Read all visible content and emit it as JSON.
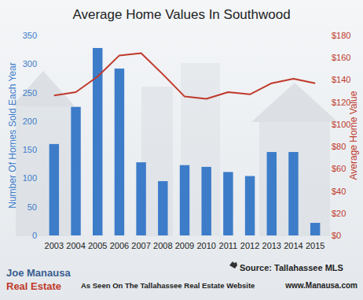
{
  "chart_data": {
    "type": "bar",
    "title": "Average Home Values In Southwood",
    "y_label": "Number Of Homes Sold Each Year",
    "y2_label": "Average Home Value",
    "categories": [
      "2003",
      "2004",
      "2005",
      "2006",
      "2007",
      "2008",
      "2009",
      "2010",
      "2011",
      "2012",
      "2013",
      "2014",
      "2015"
    ],
    "series": [
      {
        "type": "bar",
        "color": "#3d7cc9",
        "values": [
          160,
          225,
          328,
          292,
          128,
          95,
          123,
          120,
          111,
          104,
          146,
          146,
          22
        ]
      },
      {
        "type": "line",
        "color": "#c0392b",
        "axis": "y2",
        "values": [
          126,
          129,
          143,
          162,
          164,
          145,
          125,
          123,
          129,
          127,
          137,
          141,
          137
        ]
      }
    ],
    "ylim": [
      0,
      350
    ],
    "yticks": [
      0,
      50,
      100,
      150,
      200,
      250,
      300,
      350
    ],
    "y2lim": [
      0,
      180
    ],
    "y2ticks": [
      {
        "value": 0,
        "label": "$0"
      },
      {
        "value": 20,
        "label": "$20"
      },
      {
        "value": 40,
        "label": "$40"
      },
      {
        "value": 60,
        "label": "$60"
      },
      {
        "value": 80,
        "label": "$80"
      },
      {
        "value": 100,
        "label": "$100"
      },
      {
        "value": 120,
        "label": "$120"
      },
      {
        "value": 140,
        "label": "$140"
      },
      {
        "value": 160,
        "label": "$160"
      },
      {
        "value": 180,
        "label": "$180"
      }
    ],
    "grid": false,
    "annotations": [
      "Source: Tallahassee MLS",
      "Joe Manausa",
      "Real Estate",
      "As Seen On The Tallahassee Real Estate Website",
      "www.Manausa.com"
    ]
  }
}
